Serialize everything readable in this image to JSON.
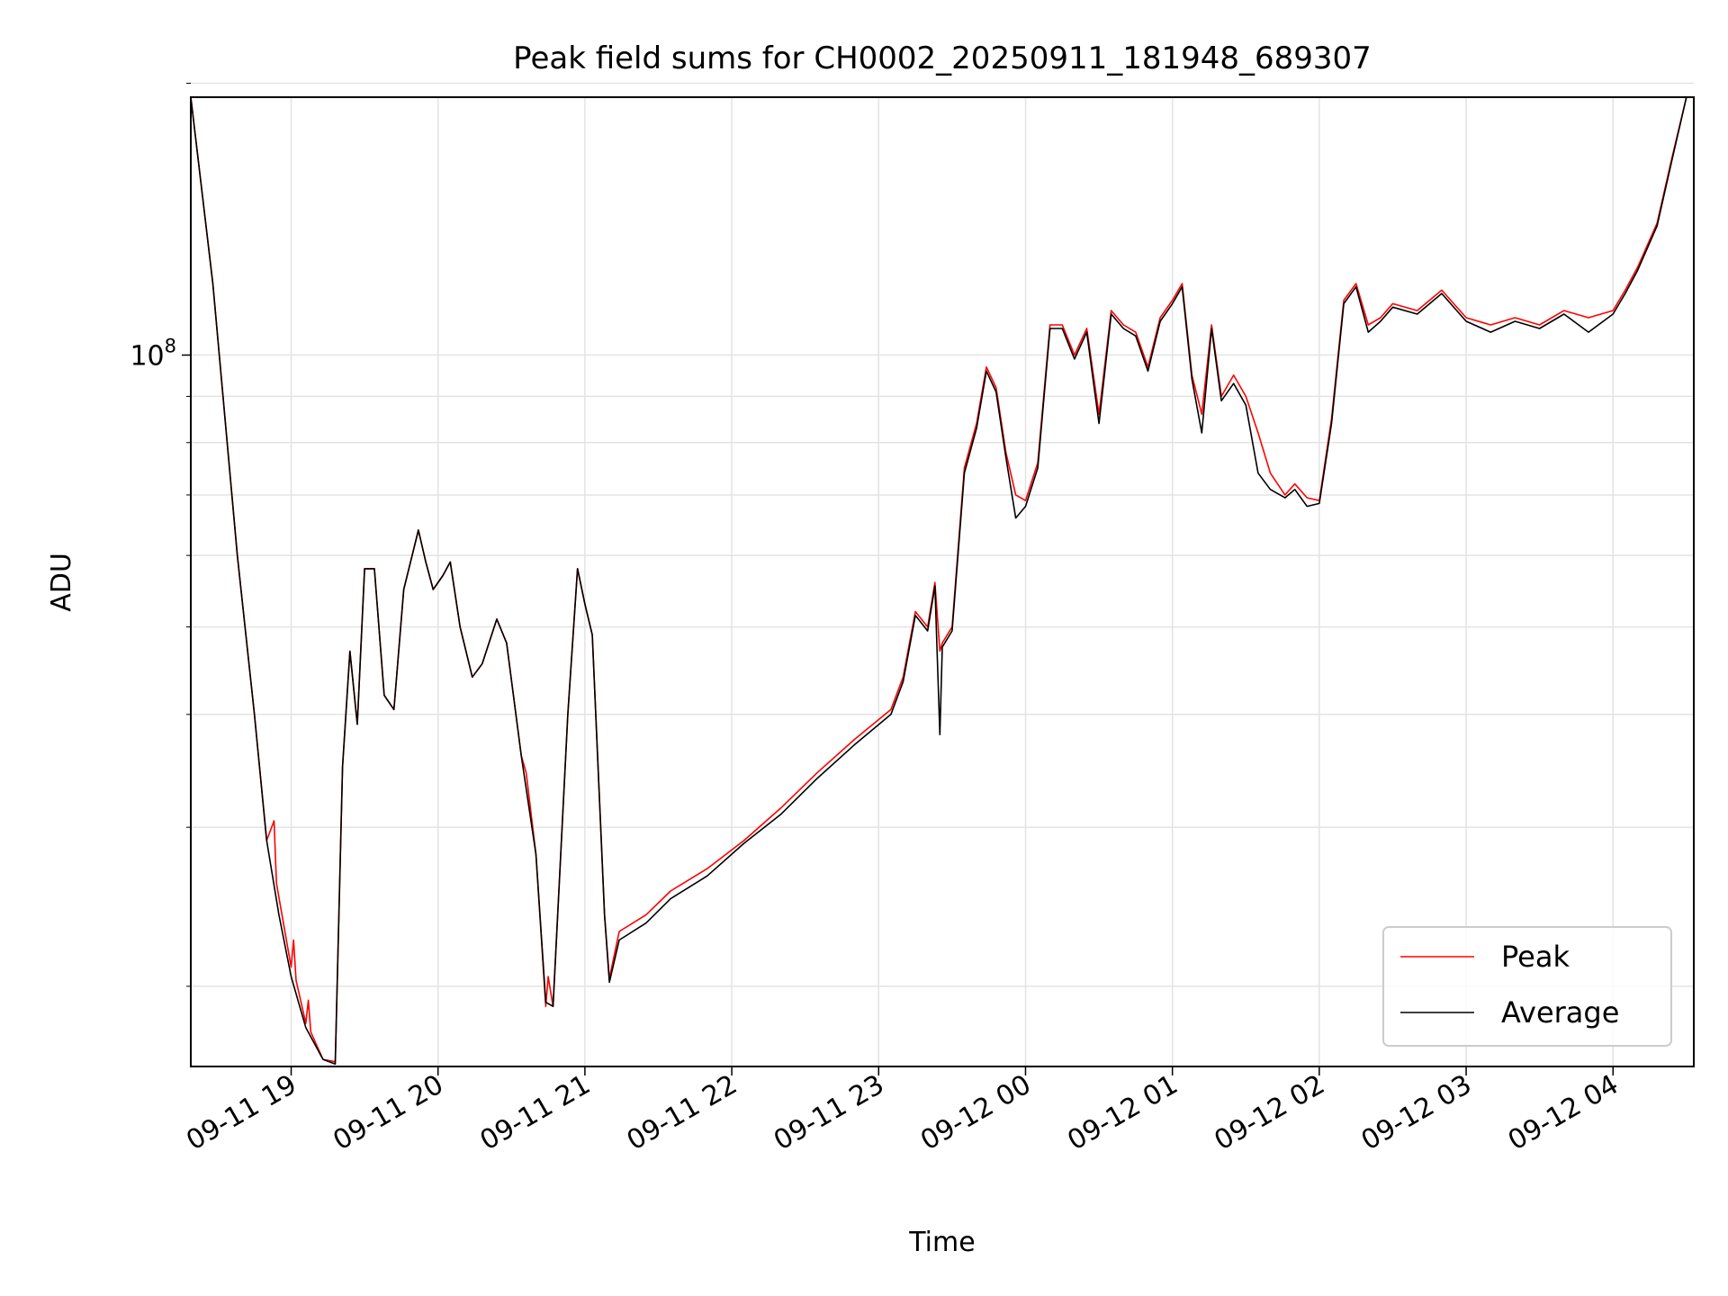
{
  "chart_data": {
    "type": "line",
    "title": "Peak field sums for CH0002_20250911_181948_689307",
    "xlabel": "Time",
    "ylabel": "ADU",
    "y_scale": "log",
    "ylim": [
      16300000,
      193000000
    ],
    "xlim": [
      "2025-09-11 18:19",
      "2025-09-12 04:33"
    ],
    "x_ticks": [
      {
        "time": "2025-09-11 19:00",
        "label": "09-11 19"
      },
      {
        "time": "2025-09-11 20:00",
        "label": "09-11 20"
      },
      {
        "time": "2025-09-11 21:00",
        "label": "09-11 21"
      },
      {
        "time": "2025-09-11 22:00",
        "label": "09-11 22"
      },
      {
        "time": "2025-09-11 23:00",
        "label": "09-11 23"
      },
      {
        "time": "2025-09-12 00:00",
        "label": "09-12 00"
      },
      {
        "time": "2025-09-12 01:00",
        "label": "09-12 01"
      },
      {
        "time": "2025-09-12 02:00",
        "label": "09-12 02"
      },
      {
        "time": "2025-09-12 03:00",
        "label": "09-12 03"
      },
      {
        "time": "2025-09-12 04:00",
        "label": "09-12 04"
      }
    ],
    "y_major_tick": {
      "value": 100000000,
      "label_base": "10",
      "label_exp": "8"
    },
    "y_minor_ticks": [
      20000000,
      30000000,
      40000000,
      50000000,
      60000000,
      70000000,
      80000000,
      90000000,
      200000000
    ],
    "grid": true,
    "legend_position": "lower-right",
    "series": [
      {
        "name": "Peak",
        "color": "#ff0000",
        "points": [
          [
            "2025-09-11 18:19",
            193000000
          ],
          [
            "2025-09-11 18:28",
            120000000
          ],
          [
            "2025-09-11 18:38",
            60000000
          ],
          [
            "2025-09-11 18:45",
            40000000
          ],
          [
            "2025-09-11 18:50",
            29000000
          ],
          [
            "2025-09-11 18:53",
            30500000
          ],
          [
            "2025-09-11 18:54",
            26000000
          ],
          [
            "2025-09-11 19:00",
            21000000
          ],
          [
            "2025-09-11 19:01",
            22500000
          ],
          [
            "2025-09-11 19:02",
            20300000
          ],
          [
            "2025-09-11 19:06",
            18200000
          ],
          [
            "2025-09-11 19:07",
            19300000
          ],
          [
            "2025-09-11 19:08",
            17800000
          ],
          [
            "2025-09-11 19:13",
            16600000
          ],
          [
            "2025-09-11 19:18",
            16500000
          ],
          [
            "2025-09-11 19:21",
            35000000
          ],
          [
            "2025-09-11 19:24",
            47000000
          ],
          [
            "2025-09-11 19:27",
            39000000
          ],
          [
            "2025-09-11 19:30",
            58000000
          ],
          [
            "2025-09-11 19:34",
            58000000
          ],
          [
            "2025-09-11 19:38",
            42000000
          ],
          [
            "2025-09-11 19:42",
            40500000
          ],
          [
            "2025-09-11 19:46",
            55000000
          ],
          [
            "2025-09-11 19:52",
            64000000
          ],
          [
            "2025-09-11 19:55",
            59000000
          ],
          [
            "2025-09-11 19:58",
            55000000
          ],
          [
            "2025-09-11 20:02",
            57000000
          ],
          [
            "2025-09-11 20:05",
            59000000
          ],
          [
            "2025-09-11 20:09",
            50000000
          ],
          [
            "2025-09-11 20:14",
            44000000
          ],
          [
            "2025-09-11 20:18",
            45500000
          ],
          [
            "2025-09-11 20:24",
            51000000
          ],
          [
            "2025-09-11 20:28",
            48000000
          ],
          [
            "2025-09-11 20:34",
            36000000
          ],
          [
            "2025-09-11 20:36",
            34500000
          ],
          [
            "2025-09-11 20:40",
            28000000
          ],
          [
            "2025-09-11 20:44",
            19000000
          ],
          [
            "2025-09-11 20:45",
            20500000
          ],
          [
            "2025-09-11 20:47",
            19000000
          ],
          [
            "2025-09-11 20:53",
            40000000
          ],
          [
            "2025-09-11 20:57",
            58000000
          ],
          [
            "2025-09-11 21:00",
            53000000
          ],
          [
            "2025-09-11 21:03",
            49000000
          ],
          [
            "2025-09-11 21:08",
            24000000
          ],
          [
            "2025-09-11 21:10",
            20400000
          ],
          [
            "2025-09-11 21:14",
            23000000
          ],
          [
            "2025-09-11 21:25",
            24000000
          ],
          [
            "2025-09-11 21:35",
            25500000
          ],
          [
            "2025-09-11 21:50",
            27000000
          ],
          [
            "2025-09-11 22:05",
            29000000
          ],
          [
            "2025-09-11 22:20",
            31500000
          ],
          [
            "2025-09-11 22:35",
            34500000
          ],
          [
            "2025-09-11 22:50",
            37500000
          ],
          [
            "2025-09-11 23:05",
            40500000
          ],
          [
            "2025-09-11 23:10",
            44000000
          ],
          [
            "2025-09-11 23:15",
            52000000
          ],
          [
            "2025-09-11 23:20",
            50000000
          ],
          [
            "2025-09-11 23:23",
            56000000
          ],
          [
            "2025-09-11 23:25",
            47000000
          ],
          [
            "2025-09-11 23:26",
            48000000
          ],
          [
            "2025-09-11 23:30",
            50000000
          ],
          [
            "2025-09-11 23:35",
            75000000
          ],
          [
            "2025-09-11 23:40",
            84000000
          ],
          [
            "2025-09-11 23:44",
            97000000
          ],
          [
            "2025-09-11 23:48",
            92000000
          ],
          [
            "2025-09-11 23:52",
            78000000
          ],
          [
            "2025-09-11 23:56",
            70000000
          ],
          [
            "2025-09-12 00:00",
            69000000
          ],
          [
            "2025-09-12 00:05",
            76000000
          ],
          [
            "2025-09-12 00:10",
            108000000
          ],
          [
            "2025-09-12 00:15",
            108000000
          ],
          [
            "2025-09-12 00:20",
            100000000
          ],
          [
            "2025-09-12 00:25",
            107000000
          ],
          [
            "2025-09-12 00:30",
            86000000
          ],
          [
            "2025-09-12 00:35",
            112000000
          ],
          [
            "2025-09-12 00:40",
            108000000
          ],
          [
            "2025-09-12 00:45",
            106000000
          ],
          [
            "2025-09-12 00:50",
            97000000
          ],
          [
            "2025-09-12 00:55",
            110000000
          ],
          [
            "2025-09-12 01:00",
            115000000
          ],
          [
            "2025-09-12 01:04",
            120000000
          ],
          [
            "2025-09-12 01:08",
            95000000
          ],
          [
            "2025-09-12 01:12",
            86000000
          ],
          [
            "2025-09-12 01:16",
            108000000
          ],
          [
            "2025-09-12 01:20",
            90000000
          ],
          [
            "2025-09-12 01:25",
            95000000
          ],
          [
            "2025-09-12 01:30",
            90000000
          ],
          [
            "2025-09-12 01:35",
            82000000
          ],
          [
            "2025-09-12 01:40",
            74000000
          ],
          [
            "2025-09-12 01:46",
            70000000
          ],
          [
            "2025-09-12 01:50",
            72000000
          ],
          [
            "2025-09-12 01:55",
            69500000
          ],
          [
            "2025-09-12 02:00",
            69000000
          ],
          [
            "2025-09-12 02:05",
            85000000
          ],
          [
            "2025-09-12 02:10",
            115000000
          ],
          [
            "2025-09-12 02:15",
            120000000
          ],
          [
            "2025-09-12 02:20",
            108000000
          ],
          [
            "2025-09-12 02:25",
            110000000
          ],
          [
            "2025-09-12 02:30",
            114000000
          ],
          [
            "2025-09-12 02:40",
            112000000
          ],
          [
            "2025-09-12 02:50",
            118000000
          ],
          [
            "2025-09-12 03:00",
            110000000
          ],
          [
            "2025-09-12 03:10",
            108000000
          ],
          [
            "2025-09-12 03:20",
            110000000
          ],
          [
            "2025-09-12 03:30",
            108000000
          ],
          [
            "2025-09-12 03:40",
            112000000
          ],
          [
            "2025-09-12 03:50",
            110000000
          ],
          [
            "2025-09-12 04:00",
            112000000
          ],
          [
            "2025-09-12 04:05",
            118000000
          ],
          [
            "2025-09-12 04:10",
            125000000
          ],
          [
            "2025-09-12 04:18",
            140000000
          ],
          [
            "2025-09-12 04:24",
            165000000
          ],
          [
            "2025-09-12 04:30",
            193000000
          ]
        ]
      },
      {
        "name": "Average",
        "color": "#000000",
        "points": [
          [
            "2025-09-11 18:19",
            193000000
          ],
          [
            "2025-09-11 18:28",
            120000000
          ],
          [
            "2025-09-11 18:38",
            60000000
          ],
          [
            "2025-09-11 18:45",
            40000000
          ],
          [
            "2025-09-11 18:50",
            29000000
          ],
          [
            "2025-09-11 18:55",
            24000000
          ],
          [
            "2025-09-11 19:00",
            20500000
          ],
          [
            "2025-09-11 19:06",
            18000000
          ],
          [
            "2025-09-11 19:13",
            16600000
          ],
          [
            "2025-09-11 19:18",
            16400000
          ],
          [
            "2025-09-11 19:21",
            35000000
          ],
          [
            "2025-09-11 19:24",
            47000000
          ],
          [
            "2025-09-11 19:27",
            39000000
          ],
          [
            "2025-09-11 19:30",
            58000000
          ],
          [
            "2025-09-11 19:34",
            58000000
          ],
          [
            "2025-09-11 19:38",
            42000000
          ],
          [
            "2025-09-11 19:42",
            40500000
          ],
          [
            "2025-09-11 19:46",
            55000000
          ],
          [
            "2025-09-11 19:52",
            64000000
          ],
          [
            "2025-09-11 19:55",
            59000000
          ],
          [
            "2025-09-11 19:58",
            55000000
          ],
          [
            "2025-09-11 20:02",
            57000000
          ],
          [
            "2025-09-11 20:05",
            59000000
          ],
          [
            "2025-09-11 20:09",
            50000000
          ],
          [
            "2025-09-11 20:14",
            44000000
          ],
          [
            "2025-09-11 20:18",
            45500000
          ],
          [
            "2025-09-11 20:24",
            51000000
          ],
          [
            "2025-09-11 20:28",
            48000000
          ],
          [
            "2025-09-11 20:34",
            36000000
          ],
          [
            "2025-09-11 20:40",
            28000000
          ],
          [
            "2025-09-11 20:44",
            19200000
          ],
          [
            "2025-09-11 20:47",
            19000000
          ],
          [
            "2025-09-11 20:53",
            40000000
          ],
          [
            "2025-09-11 20:57",
            58000000
          ],
          [
            "2025-09-11 21:00",
            53000000
          ],
          [
            "2025-09-11 21:03",
            49000000
          ],
          [
            "2025-09-11 21:08",
            24000000
          ],
          [
            "2025-09-11 21:10",
            20200000
          ],
          [
            "2025-09-11 21:14",
            22500000
          ],
          [
            "2025-09-11 21:25",
            23500000
          ],
          [
            "2025-09-11 21:35",
            25000000
          ],
          [
            "2025-09-11 21:50",
            26500000
          ],
          [
            "2025-09-11 22:05",
            28800000
          ],
          [
            "2025-09-11 22:20",
            31000000
          ],
          [
            "2025-09-11 22:35",
            34000000
          ],
          [
            "2025-09-11 22:50",
            37000000
          ],
          [
            "2025-09-11 23:05",
            40000000
          ],
          [
            "2025-09-11 23:10",
            43500000
          ],
          [
            "2025-09-11 23:15",
            51500000
          ],
          [
            "2025-09-11 23:20",
            49500000
          ],
          [
            "2025-09-11 23:23",
            55500000
          ],
          [
            "2025-09-11 23:25",
            38000000
          ],
          [
            "2025-09-11 23:26",
            47500000
          ],
          [
            "2025-09-11 23:30",
            49500000
          ],
          [
            "2025-09-11 23:35",
            74000000
          ],
          [
            "2025-09-11 23:40",
            83000000
          ],
          [
            "2025-09-11 23:44",
            96000000
          ],
          [
            "2025-09-11 23:48",
            91000000
          ],
          [
            "2025-09-11 23:52",
            77000000
          ],
          [
            "2025-09-11 23:56",
            66000000
          ],
          [
            "2025-09-12 00:00",
            68000000
          ],
          [
            "2025-09-12 00:05",
            75000000
          ],
          [
            "2025-09-12 00:10",
            107000000
          ],
          [
            "2025-09-12 00:15",
            107000000
          ],
          [
            "2025-09-12 00:20",
            99000000
          ],
          [
            "2025-09-12 00:25",
            106000000
          ],
          [
            "2025-09-12 00:30",
            84000000
          ],
          [
            "2025-09-12 00:35",
            111000000
          ],
          [
            "2025-09-12 00:40",
            107000000
          ],
          [
            "2025-09-12 00:45",
            105000000
          ],
          [
            "2025-09-12 00:50",
            96000000
          ],
          [
            "2025-09-12 00:55",
            109000000
          ],
          [
            "2025-09-12 01:00",
            114000000
          ],
          [
            "2025-09-12 01:04",
            119000000
          ],
          [
            "2025-09-12 01:08",
            94000000
          ],
          [
            "2025-09-12 01:12",
            82000000
          ],
          [
            "2025-09-12 01:16",
            107000000
          ],
          [
            "2025-09-12 01:20",
            89000000
          ],
          [
            "2025-09-12 01:25",
            93000000
          ],
          [
            "2025-09-12 01:30",
            88000000
          ],
          [
            "2025-09-12 01:35",
            74000000
          ],
          [
            "2025-09-12 01:40",
            71000000
          ],
          [
            "2025-09-12 01:46",
            69500000
          ],
          [
            "2025-09-12 01:50",
            71000000
          ],
          [
            "2025-09-12 01:55",
            68000000
          ],
          [
            "2025-09-12 02:00",
            68500000
          ],
          [
            "2025-09-12 02:05",
            84000000
          ],
          [
            "2025-09-12 02:10",
            114000000
          ],
          [
            "2025-09-12 02:15",
            119000000
          ],
          [
            "2025-09-12 02:20",
            106000000
          ],
          [
            "2025-09-12 02:25",
            109000000
          ],
          [
            "2025-09-12 02:30",
            113000000
          ],
          [
            "2025-09-12 02:40",
            111000000
          ],
          [
            "2025-09-12 02:50",
            117000000
          ],
          [
            "2025-09-12 03:00",
            109000000
          ],
          [
            "2025-09-12 03:10",
            106000000
          ],
          [
            "2025-09-12 03:20",
            109000000
          ],
          [
            "2025-09-12 03:30",
            107000000
          ],
          [
            "2025-09-12 03:40",
            111000000
          ],
          [
            "2025-09-12 03:50",
            106000000
          ],
          [
            "2025-09-12 04:00",
            111000000
          ],
          [
            "2025-09-12 04:05",
            117000000
          ],
          [
            "2025-09-12 04:10",
            124000000
          ],
          [
            "2025-09-12 04:18",
            139000000
          ],
          [
            "2025-09-12 04:24",
            164000000
          ],
          [
            "2025-09-12 04:30",
            193000000
          ]
        ]
      }
    ]
  }
}
